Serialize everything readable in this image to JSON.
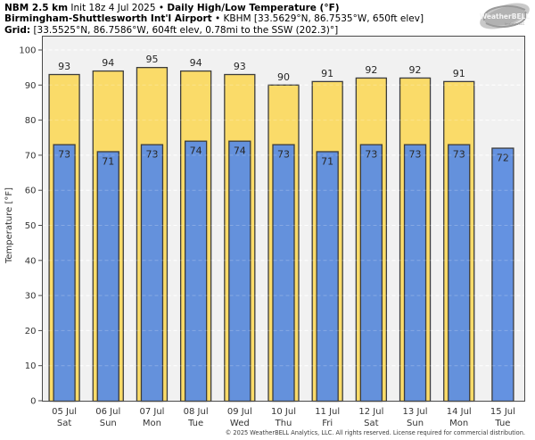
{
  "header": {
    "line1": {
      "bold1": "NBM 2.5 km",
      "mid": " Init 18z 4 Jul 2025 • ",
      "bold2": "Daily High/Low Temperature (°F)"
    },
    "line2": {
      "bold": "Birmingham-Shuttlesworth Int'l Airport",
      "rest": " • KBHM [33.5629°N, 86.7535°W, 650ft elev]"
    },
    "line3": {
      "bold": "Grid:",
      "rest": " [33.5525°N, 86.7586°W, 604ft elev, 0.78mi to the SSW (202.3)°]"
    }
  },
  "logo": {
    "text": "WeatherBELL",
    "subtext": "Analytics LLC"
  },
  "chart_data": {
    "type": "bar",
    "title": "Daily High/Low Temperature (°F)",
    "subtitle": "NBM 2.5 km Init 18z 4 Jul 2025 — Birmingham-Shuttlesworth Int'l Airport (KBHM)",
    "xlabel": "",
    "ylabel": "Temperature [°F]",
    "ylim": [
      0,
      104
    ],
    "yticks": [
      0,
      10,
      20,
      30,
      40,
      50,
      60,
      70,
      80,
      90,
      100
    ],
    "grid": "dashed-horizontal",
    "legend": false,
    "categories": [
      "05 Jul",
      "06 Jul",
      "07 Jul",
      "08 Jul",
      "09 Jul",
      "10 Jul",
      "11 Jul",
      "12 Jul",
      "13 Jul",
      "14 Jul",
      "15 Jul"
    ],
    "weekdays": [
      "Sat",
      "Sun",
      "Mon",
      "Tue",
      "Wed",
      "Thu",
      "Fri",
      "Sat",
      "Sun",
      "Mon",
      "Tue"
    ],
    "series": [
      {
        "name": "Daily High",
        "color": "#FADA64",
        "values": [
          93,
          94,
          95,
          94,
          93,
          90,
          91,
          92,
          92,
          91,
          null
        ]
      },
      {
        "name": "Daily Low",
        "color": "#5F8EE0",
        "values": [
          73,
          71,
          73,
          74,
          74,
          73,
          71,
          73,
          73,
          73,
          72
        ]
      }
    ],
    "colors": {
      "plot_background": "#f1f1f1",
      "bar_border": "#3c3c3c",
      "frame": "#4a4a4a",
      "gridline": "#ffffff",
      "label_text": "#262626",
      "tick_text": "#333333"
    }
  },
  "footer": {
    "copyright": "© 2025 WeatherBELL Analytics, LLC. All rights reserved. License required for commercial distribution."
  }
}
